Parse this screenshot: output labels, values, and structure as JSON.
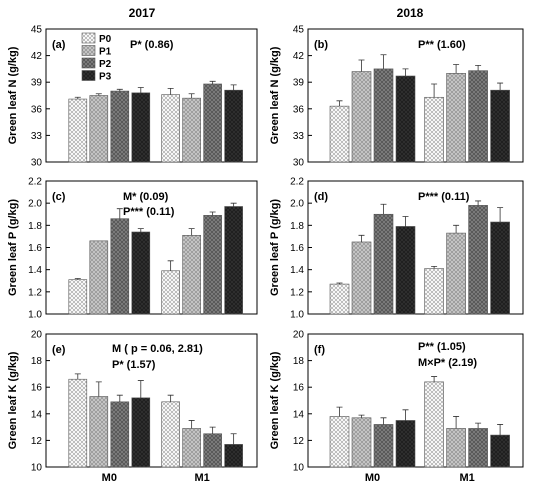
{
  "figure": {
    "col_headers": [
      "2017",
      "2018"
    ],
    "legend": [
      "P0",
      "P1",
      "P2",
      "P3"
    ],
    "series_fills": [
      "#ffffff",
      "#c8c8c8",
      "#7a7a7a",
      "#2e2e2e"
    ],
    "pattern_fg": [
      "#9a9a9a",
      "#888888",
      "#3a3a3a",
      "#111111"
    ]
  },
  "chart_data": [
    {
      "type": "bar",
      "panel": "(a)",
      "ylabel": "Green leaf N (g/kg)",
      "ylim": [
        30,
        45
      ],
      "yticks": [
        "30",
        "33",
        "36",
        "39",
        "42",
        "45"
      ],
      "categories": [
        "M0",
        "M1"
      ],
      "series": [
        {
          "name": "P0",
          "values": [
            37.1,
            37.6
          ],
          "errors": [
            0.2,
            0.7
          ]
        },
        {
          "name": "P1",
          "values": [
            37.5,
            37.2
          ],
          "errors": [
            0.2,
            0.5
          ]
        },
        {
          "name": "P2",
          "values": [
            38.0,
            38.8
          ],
          "errors": [
            0.2,
            0.3
          ]
        },
        {
          "name": "P3",
          "values": [
            37.8,
            38.1
          ],
          "errors": [
            0.6,
            0.6
          ]
        }
      ],
      "annotations": [
        "P* (0.86)"
      ]
    },
    {
      "type": "bar",
      "panel": "(b)",
      "ylabel": "Green leaf N (g/kg)",
      "ylim": [
        30,
        45
      ],
      "yticks": [
        "30",
        "33",
        "36",
        "39",
        "42",
        "45"
      ],
      "categories": [
        "M0",
        "M1"
      ],
      "series": [
        {
          "name": "P0",
          "values": [
            36.3,
            37.3
          ],
          "errors": [
            0.6,
            1.5
          ]
        },
        {
          "name": "P1",
          "values": [
            40.2,
            40.0
          ],
          "errors": [
            1.3,
            1.0
          ]
        },
        {
          "name": "P2",
          "values": [
            40.5,
            40.3
          ],
          "errors": [
            1.6,
            0.6
          ]
        },
        {
          "name": "P3",
          "values": [
            39.7,
            38.1
          ],
          "errors": [
            0.8,
            0.8
          ]
        }
      ],
      "annotations": [
        "P** (1.60)"
      ]
    },
    {
      "type": "bar",
      "panel": "(c)",
      "ylabel": "Green leaf P (g/kg)",
      "ylim": [
        1.0,
        2.2
      ],
      "yticks": [
        "1.0",
        "1.2",
        "1.4",
        "1.6",
        "1.8",
        "2.0",
        "2.2"
      ],
      "categories": [
        "M0",
        "M1"
      ],
      "series": [
        {
          "name": "P0",
          "values": [
            1.31,
            1.39
          ],
          "errors": [
            0.01,
            0.09
          ]
        },
        {
          "name": "P1",
          "values": [
            1.66,
            1.71
          ],
          "errors": [
            0.0,
            0.06
          ]
        },
        {
          "name": "P2",
          "values": [
            1.86,
            1.89
          ],
          "errors": [
            0.09,
            0.03
          ]
        },
        {
          "name": "P3",
          "values": [
            1.74,
            1.97
          ],
          "errors": [
            0.03,
            0.03
          ]
        }
      ],
      "annotations": [
        "M* (0.09)",
        "P*** (0.11)"
      ]
    },
    {
      "type": "bar",
      "panel": "(d)",
      "ylabel": "Green leaf P (g/kg)",
      "ylim": [
        1.0,
        2.2
      ],
      "yticks": [
        "1.0",
        "1.2",
        "1.4",
        "1.6",
        "1.8",
        "2.0",
        "2.2"
      ],
      "categories": [
        "M0",
        "M1"
      ],
      "series": [
        {
          "name": "P0",
          "values": [
            1.27,
            1.41
          ],
          "errors": [
            0.01,
            0.02
          ]
        },
        {
          "name": "P1",
          "values": [
            1.65,
            1.73
          ],
          "errors": [
            0.06,
            0.07
          ]
        },
        {
          "name": "P2",
          "values": [
            1.9,
            1.98
          ],
          "errors": [
            0.09,
            0.04
          ]
        },
        {
          "name": "P3",
          "values": [
            1.79,
            1.83
          ],
          "errors": [
            0.09,
            0.13
          ]
        }
      ],
      "annotations": [
        "P*** (0.11)"
      ]
    },
    {
      "type": "bar",
      "panel": "(e)",
      "ylabel": "Green leaf K (g/kg)",
      "ylim": [
        10,
        20
      ],
      "yticks": [
        "10",
        "12",
        "14",
        "16",
        "18",
        "20"
      ],
      "categories": [
        "M0",
        "M1"
      ],
      "series": [
        {
          "name": "P0",
          "values": [
            16.6,
            14.9
          ],
          "errors": [
            0.4,
            0.5
          ]
        },
        {
          "name": "P1",
          "values": [
            15.3,
            12.9
          ],
          "errors": [
            1.1,
            0.6
          ]
        },
        {
          "name": "P2",
          "values": [
            14.9,
            12.5
          ],
          "errors": [
            0.5,
            0.5
          ]
        },
        {
          "name": "P3",
          "values": [
            15.2,
            11.7
          ],
          "errors": [
            1.3,
            0.8
          ]
        }
      ],
      "annotations": [
        "M ( p = 0.06, 2.81)",
        "P* (1.57)"
      ]
    },
    {
      "type": "bar",
      "panel": "(f)",
      "ylabel": "Green leaf K (g/kg)",
      "ylim": [
        10,
        20
      ],
      "yticks": [
        "10",
        "12",
        "14",
        "16",
        "18",
        "20"
      ],
      "categories": [
        "M0",
        "M1"
      ],
      "series": [
        {
          "name": "P0",
          "values": [
            13.8,
            16.4
          ],
          "errors": [
            0.7,
            0.4
          ]
        },
        {
          "name": "P1",
          "values": [
            13.7,
            12.9
          ],
          "errors": [
            0.2,
            0.9
          ]
        },
        {
          "name": "P2",
          "values": [
            13.2,
            12.9
          ],
          "errors": [
            0.5,
            0.4
          ]
        },
        {
          "name": "P3",
          "values": [
            13.5,
            12.4
          ],
          "errors": [
            0.8,
            0.8
          ]
        }
      ],
      "annotations": [
        "P** (1.05)",
        "M×P* (2.19)"
      ]
    }
  ]
}
